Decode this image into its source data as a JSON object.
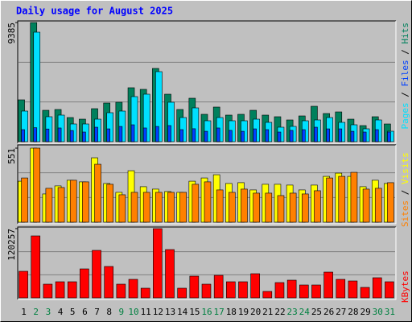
{
  "chart_data": [
    {
      "type": "bar",
      "title": "Daily usage for August 2025",
      "ylim": [
        0,
        9385
      ],
      "yticks": [
        9385
      ],
      "legend_separator": " / ",
      "series": [
        {
          "name": "Hits",
          "color": "#00805c",
          "values": [
            3297,
            9385,
            2473,
            2536,
            1902,
            1775,
            2600,
            3044,
            3107,
            4249,
            4122,
            5770,
            3741,
            2536,
            3424,
            2156,
            2727,
            2093,
            2156,
            2473,
            2093,
            1966,
            1712,
            2029,
            2790,
            2219,
            2346,
            1775,
            1268,
            1966,
            1395
          ]
        },
        {
          "name": "Files",
          "color": "#0040ff",
          "values": [
            950,
            1100,
            1000,
            1080,
            880,
            760,
            1140,
            1010,
            1200,
            1330,
            1080,
            1200,
            1270,
            950,
            1020,
            820,
            1080,
            890,
            820,
            1010,
            950,
            760,
            890,
            950,
            1140,
            1010,
            1010,
            820,
            760,
            950,
            760
          ]
        },
        {
          "name": "Pages",
          "color": "#00e0ff",
          "values": [
            2410,
            8624,
            1966,
            2093,
            1395,
            1395,
            1775,
            2283,
            2410,
            3551,
            3741,
            5517,
            3107,
            1902,
            2663,
            1649,
            1902,
            1649,
            1649,
            1775,
            1522,
            1141,
            1205,
            1649,
            1712,
            1902,
            1522,
            1332,
            1015,
            1712,
            824
          ]
        }
      ]
    },
    {
      "type": "bar",
      "ylim": [
        0,
        551
      ],
      "yticks": [
        551
      ],
      "legend_separator": " / ",
      "series": [
        {
          "name": "Visits",
          "color": "#ffff00",
          "values": [
            305,
            551,
            210,
            270,
            312,
            300,
            479,
            288,
            222,
            383,
            264,
            246,
            228,
            222,
            305,
            329,
            353,
            288,
            294,
            240,
            282,
            282,
            276,
            240,
            276,
            341,
            365,
            341,
            264,
            312,
            288
          ]
        },
        {
          "name": "Sites",
          "color": "#ff8000",
          "values": [
            329,
            551,
            252,
            258,
            312,
            300,
            431,
            282,
            204,
            222,
            222,
            222,
            222,
            222,
            282,
            300,
            240,
            222,
            246,
            216,
            216,
            198,
            216,
            210,
            234,
            329,
            341,
            371,
            246,
            252,
            294
          ]
        }
      ]
    },
    {
      "type": "bar",
      "ylim": [
        0,
        120257
      ],
      "yticks": [
        120257
      ],
      "categories": [
        "1",
        "2",
        "3",
        "4",
        "5",
        "6",
        "7",
        "8",
        "9",
        "10",
        "11",
        "12",
        "13",
        "14",
        "15",
        "16",
        "17",
        "18",
        "19",
        "20",
        "21",
        "22",
        "23",
        "24",
        "25",
        "26",
        "27",
        "28",
        "29",
        "30",
        "31"
      ],
      "category_colors": [
        "#000000",
        "#008040",
        "#008040",
        "#000000",
        "#000000",
        "#000000",
        "#000000",
        "#000000",
        "#008040",
        "#008040",
        "#000000",
        "#000000",
        "#000000",
        "#000000",
        "#000000",
        "#008040",
        "#008040",
        "#000000",
        "#000000",
        "#000000",
        "#000000",
        "#000000",
        "#008040",
        "#008040",
        "#000000",
        "#000000",
        "#000000",
        "#000000",
        "#000000",
        "#008040",
        "#008040"
      ],
      "series": [
        {
          "name": "KBytes",
          "color": "#ff0000",
          "values": [
            46147,
            107650,
            23768,
            27962,
            27962,
            50330,
            82485,
            54524,
            23768,
            32155,
            16777,
            120257,
            83883,
            16777,
            37747,
            23768,
            39145,
            27962,
            27962,
            41942,
            11184,
            26563,
            30757,
            22369,
            22369,
            44737,
            32155,
            29359,
            18175,
            34951,
            27962
          ]
        }
      ]
    }
  ]
}
